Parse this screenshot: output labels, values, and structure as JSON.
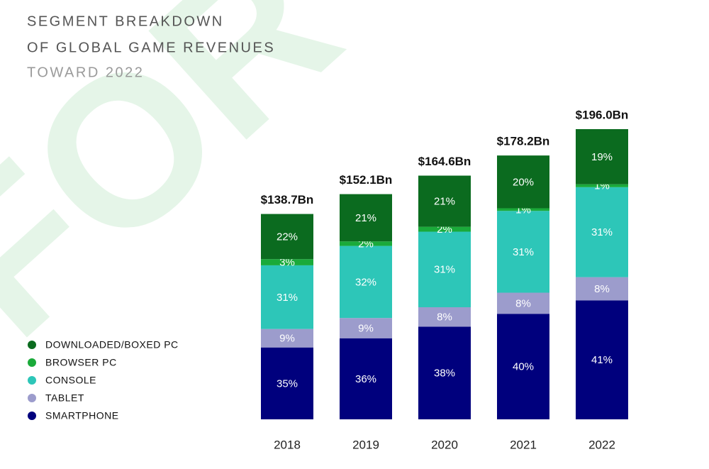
{
  "chart_data": {
    "type": "stacked_bar",
    "title": [
      "SEGMENT BREAKDOWN",
      "OF GLOBAL GAME REVENUES"
    ],
    "subtitle": "TOWARD 2022",
    "watermark": "FOR",
    "categories": [
      "2018",
      "2019",
      "2020",
      "2021",
      "2022"
    ],
    "totals": {
      "values": [
        138.7,
        152.1,
        164.6,
        178.2,
        196.0
      ],
      "value_labels": [
        "$138.7Bn",
        "$152.1Bn",
        "$164.6Bn",
        "$178.2Bn",
        "$196.0Bn"
      ]
    },
    "series": [
      {
        "name": "SMARTPHONE",
        "color": "#00007d",
        "values": [
          35,
          36,
          38,
          40,
          41
        ],
        "value_labels": [
          "35%",
          "36%",
          "38%",
          "40%",
          "41%"
        ]
      },
      {
        "name": "TABLET",
        "color": "#9c9ccc",
        "values": [
          9,
          9,
          8,
          8,
          8
        ],
        "value_labels": [
          "9%",
          "9%",
          "8%",
          "8%",
          "8%"
        ]
      },
      {
        "name": "CONSOLE",
        "color": "#2dc6b8",
        "values": [
          31,
          32,
          31,
          31,
          31
        ],
        "value_labels": [
          "31%",
          "32%",
          "31%",
          "31%",
          "31%"
        ]
      },
      {
        "name": "BROWSER PC",
        "color": "#1aaa3a",
        "values": [
          3,
          2,
          2,
          1,
          1
        ],
        "value_labels": [
          "3%",
          "2%",
          "2%",
          "1%",
          "1%"
        ]
      },
      {
        "name": "DOWNLOADED/BOXED PC",
        "color": "#0b6b1f",
        "values": [
          22,
          21,
          21,
          20,
          19
        ],
        "value_labels": [
          "22%",
          "21%",
          "21%",
          "20%",
          "19%"
        ]
      }
    ],
    "legend": "bottom-left"
  }
}
